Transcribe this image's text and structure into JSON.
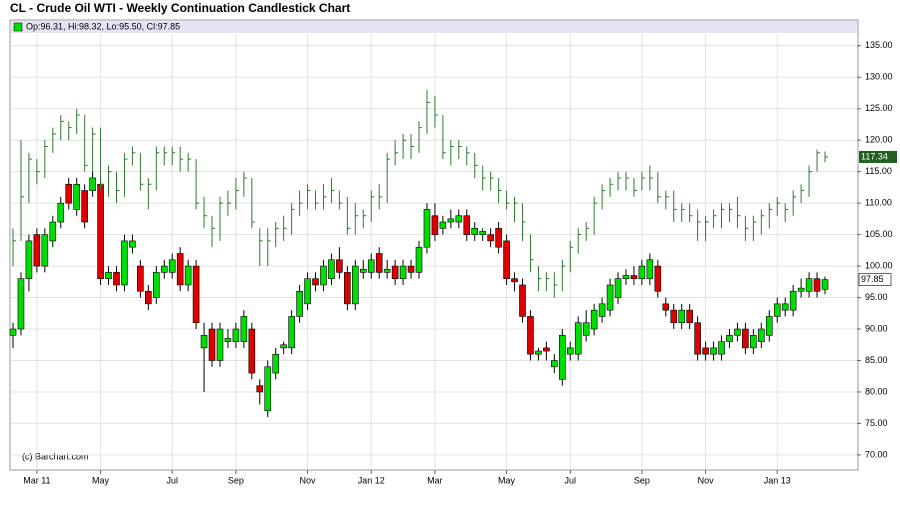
{
  "chart_data": {
    "type": "candlestick",
    "title": "CL - Crude Oil WTI - Weekly Continuation Candlestick Chart",
    "credit": "(c) Barchart.com",
    "categories": [
      null,
      null,
      null,
      "Mar 11",
      null,
      null,
      null,
      null,
      null,
      null,
      null,
      "May",
      null,
      null,
      null,
      null,
      null,
      null,
      null,
      null,
      "Jul",
      null,
      null,
      null,
      null,
      null,
      null,
      null,
      "Sep",
      null,
      null,
      null,
      null,
      null,
      null,
      null,
      null,
      "Nov",
      null,
      null,
      null,
      null,
      null,
      null,
      null,
      "Jan 12",
      null,
      null,
      null,
      null,
      null,
      null,
      null,
      "Mar",
      null,
      null,
      null,
      null,
      null,
      null,
      null,
      null,
      "May",
      null,
      null,
      null,
      null,
      null,
      null,
      null,
      "Jul",
      null,
      null,
      null,
      null,
      null,
      null,
      null,
      null,
      "Sep",
      null,
      null,
      null,
      null,
      null,
      null,
      null,
      "Nov",
      null,
      null,
      null,
      null,
      null,
      null,
      null,
      null,
      "Jan 13",
      null,
      null,
      null,
      null,
      null,
      null
    ],
    "series": [
      {
        "name": "Op:96.31, Hi:98.32, Lo:95.50, Cl:97.85",
        "color": "#00dd00",
        "down_color": "#dd0000",
        "style": "candle",
        "open": [
          89,
          90,
          98,
          105,
          100,
          104,
          107,
          113,
          109,
          112,
          112,
          113,
          98,
          99,
          97,
          103,
          100,
          96,
          95,
          99,
          99,
          102,
          97,
          100,
          87,
          90,
          85,
          88,
          88,
          88,
          90,
          81,
          77,
          83,
          87,
          87,
          92,
          94,
          98,
          97,
          98,
          101,
          99,
          94,
          99,
          99,
          102,
          99,
          100,
          98,
          100,
          99,
          103,
          108,
          106,
          107,
          107,
          108,
          105,
          105,
          105,
          106,
          104,
          98,
          97,
          92,
          86,
          87,
          84,
          82,
          86,
          86,
          89,
          90,
          92,
          93,
          95,
          98,
          98.5,
          98,
          98,
          100,
          94,
          93,
          91,
          93,
          91,
          87,
          86,
          86,
          88,
          89,
          90,
          87,
          88,
          89,
          92,
          93,
          93,
          96,
          96,
          98,
          96.31
        ],
        "high": [
          91,
          99,
          105,
          106,
          106,
          108,
          111,
          114,
          114,
          113,
          115,
          114,
          100,
          100,
          105,
          105,
          101,
          97,
          100,
          101,
          102,
          103,
          101,
          101,
          91,
          91,
          91,
          90,
          91,
          93,
          91,
          82,
          85,
          87,
          88,
          93,
          97,
          99,
          99,
          101,
          102,
          103,
          100,
          101,
          101,
          102,
          103,
          101,
          101,
          101,
          101,
          104,
          110,
          110,
          108,
          109,
          109,
          109,
          107,
          106,
          106,
          107,
          105,
          99,
          98,
          93,
          87,
          88,
          86,
          90,
          88,
          92,
          93,
          94,
          95,
          98,
          99,
          99.5,
          100,
          101,
          102,
          101,
          95,
          94,
          94,
          94,
          92,
          88,
          88,
          89,
          90,
          91,
          91,
          90,
          91,
          93,
          95,
          95,
          97,
          98,
          99,
          99,
          98.32
        ],
        "low": [
          87,
          89,
          96,
          99,
          99,
          103,
          106,
          109,
          108,
          106,
          111,
          97,
          97,
          96,
          96,
          102,
          95,
          93,
          94,
          98,
          98,
          96,
          96,
          90,
          80,
          84,
          84,
          87,
          87,
          87,
          82,
          78,
          76,
          82,
          86,
          86,
          91,
          93,
          96,
          96,
          97,
          98,
          93,
          93,
          98,
          98,
          98,
          98,
          97,
          97,
          98,
          98,
          102,
          104,
          105,
          106,
          106,
          104,
          104,
          104,
          103,
          102,
          97,
          96,
          91,
          85,
          85,
          85,
          83,
          81,
          85,
          85,
          88,
          89,
          91,
          92,
          94,
          97,
          97,
          97,
          97,
          95,
          92,
          90,
          90,
          90,
          85,
          85,
          85,
          85,
          87,
          88,
          86,
          86,
          87,
          88,
          91,
          92,
          92,
          95,
          95,
          95,
          95.5
        ],
        "close": [
          90,
          98,
          104,
          100,
          105,
          107,
          110,
          110,
          113,
          107,
          114,
          98,
          99,
          97,
          104,
          104,
          96,
          94,
          99,
          100,
          101,
          97,
          100,
          91,
          89,
          85,
          90,
          88.5,
          90,
          92,
          83,
          80,
          84,
          86,
          87.5,
          92,
          96,
          98,
          97,
          100,
          101,
          99,
          94,
          100,
          99.5,
          101,
          99,
          99.5,
          98,
          100,
          99,
          103,
          109,
          105,
          107,
          107.5,
          108,
          105,
          106,
          105.5,
          104,
          103,
          98,
          97.5,
          92,
          86,
          86.5,
          86.5,
          85,
          89,
          87,
          91,
          91,
          93,
          94,
          97,
          98,
          98.5,
          98,
          100,
          101,
          96,
          93,
          91,
          93,
          91,
          86,
          86,
          87,
          88,
          89,
          90,
          87,
          89,
          90,
          92,
          94,
          94,
          96,
          96.5,
          98,
          96,
          97.85
        ]
      },
      {
        "color": "#2f7a2f",
        "tag_color": "#1f5f1f",
        "style": "bar",
        "high": [
          106,
          120,
          118,
          117,
          120,
          122,
          124,
          123,
          125,
          124,
          122,
          122,
          116,
          115,
          118,
          119,
          118,
          114,
          119,
          119,
          119,
          119,
          118,
          117,
          111,
          108,
          111,
          112,
          114,
          115,
          114,
          106,
          106,
          107,
          108,
          110,
          112,
          113,
          112,
          113,
          114,
          112,
          111,
          110,
          109,
          112,
          113,
          118,
          120,
          121,
          121,
          123,
          128,
          127,
          124,
          120,
          120,
          119,
          118,
          116,
          115,
          114,
          112,
          111,
          110,
          105,
          100,
          99,
          99,
          101,
          104,
          106,
          107,
          111,
          113,
          114,
          115,
          115,
          114,
          115,
          116,
          115,
          112,
          112,
          110,
          110,
          109,
          108,
          109,
          110,
          110,
          111,
          108,
          108,
          109,
          110,
          111,
          110,
          112,
          113,
          116,
          118.5,
          118.2
        ],
        "low": [
          100,
          104,
          110,
          113,
          114,
          118,
          120,
          120,
          121,
          115,
          115,
          112,
          111,
          110,
          111,
          116,
          112,
          109,
          112,
          116,
          116,
          115,
          115,
          109,
          106,
          103,
          104,
          108,
          109,
          111,
          106,
          100,
          100,
          103,
          104,
          105,
          108,
          109,
          109,
          109,
          110,
          109,
          105,
          105,
          106,
          107,
          109,
          110,
          116,
          117,
          117,
          118,
          121,
          122,
          117,
          116,
          117,
          116,
          114,
          112,
          112,
          110,
          109,
          107,
          104,
          99,
          96,
          96,
          95,
          96,
          99,
          102,
          104,
          105,
          109,
          111,
          112,
          112,
          111,
          112,
          112,
          110,
          109,
          107,
          107,
          107,
          104,
          104,
          106,
          106,
          107,
          106,
          104,
          104,
          105,
          106,
          108,
          107,
          108,
          110,
          111,
          115,
          116.5
        ],
        "close": [
          104,
          111,
          117,
          115,
          119,
          121,
          123,
          122,
          124,
          116,
          121,
          113,
          115,
          112,
          117,
          118,
          113,
          113,
          118,
          118,
          118,
          117,
          117,
          110,
          108,
          106,
          110,
          110,
          112,
          114,
          107,
          104,
          104,
          106,
          106,
          109,
          110,
          112,
          110,
          111,
          112,
          110,
          106,
          108,
          108,
          111,
          111,
          117,
          118,
          120,
          119,
          122,
          126,
          124,
          118,
          119,
          119,
          118,
          116,
          114,
          114,
          112,
          110,
          110,
          107,
          101,
          98,
          98,
          97,
          100,
          103,
          105,
          106,
          110,
          112,
          113,
          114,
          114,
          112,
          114,
          114,
          111,
          111,
          109,
          109,
          108,
          107,
          107,
          108,
          109,
          109,
          108,
          106,
          107,
          108,
          109,
          110,
          109,
          111,
          112,
          115,
          118,
          117.34
        ]
      }
    ],
    "ylim": [
      67.6,
      139.1
    ],
    "yticks": [
      {
        "value": 70,
        "label": "70.00"
      },
      {
        "value": 75,
        "label": "75.00"
      },
      {
        "value": 80,
        "label": "80.00"
      },
      {
        "value": 85,
        "label": "85.00"
      },
      {
        "value": 90,
        "label": "90.00"
      },
      {
        "value": 95,
        "label": "95.00"
      },
      {
        "value": 100,
        "label": "100.00"
      },
      {
        "value": 105,
        "label": "105.00"
      },
      {
        "value": 110,
        "label": "110.00"
      },
      {
        "value": 115,
        "label": "115.00"
      },
      {
        "value": 120,
        "label": "120.00"
      },
      {
        "value": 125,
        "label": "125.00"
      },
      {
        "value": 130,
        "label": "130.00"
      },
      {
        "value": 135,
        "label": "135.00"
      }
    ],
    "grid": true
  }
}
